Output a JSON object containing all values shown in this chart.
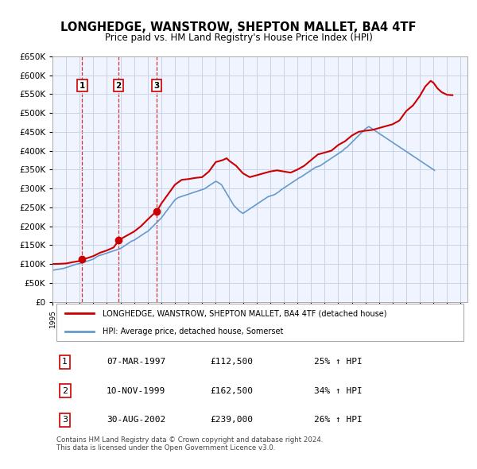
{
  "title": "LONGHEDGE, WANSTROW, SHEPTON MALLET, BA4 4TF",
  "subtitle": "Price paid vs. HM Land Registry's House Price Index (HPI)",
  "title_fontsize": 11,
  "subtitle_fontsize": 9.5,
  "bg_color": "#f0f4ff",
  "plot_bg_color": "#f0f4ff",
  "grid_color": "#c8d4e8",
  "red_color": "#cc0000",
  "blue_color": "#6699cc",
  "xlim": [
    1995.0,
    2025.5
  ],
  "ylim": [
    0,
    650000
  ],
  "yticks": [
    0,
    50000,
    100000,
    150000,
    200000,
    250000,
    300000,
    350000,
    400000,
    450000,
    500000,
    550000,
    600000,
    650000
  ],
  "ytick_labels": [
    "£0",
    "£50K",
    "£100K",
    "£150K",
    "£200K",
    "£250K",
    "£300K",
    "£350K",
    "£400K",
    "£450K",
    "£500K",
    "£550K",
    "£600K",
    "£650K"
  ],
  "xticks": [
    1995,
    1996,
    1997,
    1998,
    1999,
    2000,
    2001,
    2002,
    2003,
    2004,
    2005,
    2006,
    2007,
    2008,
    2009,
    2010,
    2011,
    2012,
    2013,
    2014,
    2015,
    2016,
    2017,
    2018,
    2019,
    2020,
    2021,
    2022,
    2023,
    2024,
    2025
  ],
  "sale_dates": [
    1997.18,
    1999.86,
    2002.66
  ],
  "sale_prices": [
    112500,
    162500,
    239000
  ],
  "sale_labels": [
    "1",
    "2",
    "3"
  ],
  "vline_dates": [
    1997.18,
    1999.86,
    2002.66
  ],
  "legend_red_label": "LONGHEDGE, WANSTROW, SHEPTON MALLET, BA4 4TF (detached house)",
  "legend_blue_label": "HPI: Average price, detached house, Somerset",
  "table_rows": [
    [
      "1",
      "07-MAR-1997",
      "£112,500",
      "25% ↑ HPI"
    ],
    [
      "2",
      "10-NOV-1999",
      "£162,500",
      "34% ↑ HPI"
    ],
    [
      "3",
      "30-AUG-2002",
      "£239,000",
      "26% ↑ HPI"
    ]
  ],
  "footer_text": "Contains HM Land Registry data © Crown copyright and database right 2024.\nThis data is licensed under the Open Government Licence v3.0.",
  "hpi_x": [
    1995.0,
    1995.08,
    1995.17,
    1995.25,
    1995.33,
    1995.42,
    1995.5,
    1995.58,
    1995.67,
    1995.75,
    1995.83,
    1995.92,
    1996.0,
    1996.08,
    1996.17,
    1996.25,
    1996.33,
    1996.42,
    1996.5,
    1996.58,
    1996.67,
    1996.75,
    1996.83,
    1996.92,
    1997.0,
    1997.08,
    1997.17,
    1997.25,
    1997.33,
    1997.42,
    1997.5,
    1997.58,
    1997.67,
    1997.75,
    1997.83,
    1997.92,
    1998.0,
    1998.08,
    1998.17,
    1998.25,
    1998.33,
    1998.42,
    1998.5,
    1998.58,
    1998.67,
    1998.75,
    1998.83,
    1998.92,
    1999.0,
    1999.08,
    1999.17,
    1999.25,
    1999.33,
    1999.42,
    1999.5,
    1999.58,
    1999.67,
    1999.75,
    1999.83,
    1999.92,
    2000.0,
    2000.08,
    2000.17,
    2000.25,
    2000.33,
    2000.42,
    2000.5,
    2000.58,
    2000.67,
    2000.75,
    2000.83,
    2000.92,
    2001.0,
    2001.08,
    2001.17,
    2001.25,
    2001.33,
    2001.42,
    2001.5,
    2001.58,
    2001.67,
    2001.75,
    2001.83,
    2001.92,
    2002.0,
    2002.08,
    2002.17,
    2002.25,
    2002.33,
    2002.42,
    2002.5,
    2002.58,
    2002.67,
    2002.75,
    2002.83,
    2002.92,
    2003.0,
    2003.08,
    2003.17,
    2003.25,
    2003.33,
    2003.42,
    2003.5,
    2003.58,
    2003.67,
    2003.75,
    2003.83,
    2003.92,
    2004.0,
    2004.08,
    2004.17,
    2004.25,
    2004.33,
    2004.42,
    2004.5,
    2004.58,
    2004.67,
    2004.75,
    2004.83,
    2004.92,
    2005.0,
    2005.08,
    2005.17,
    2005.25,
    2005.33,
    2005.42,
    2005.5,
    2005.58,
    2005.67,
    2005.75,
    2005.83,
    2005.92,
    2006.0,
    2006.08,
    2006.17,
    2006.25,
    2006.33,
    2006.42,
    2006.5,
    2006.58,
    2006.67,
    2006.75,
    2006.83,
    2006.92,
    2007.0,
    2007.08,
    2007.17,
    2007.25,
    2007.33,
    2007.42,
    2007.5,
    2007.58,
    2007.67,
    2007.75,
    2007.83,
    2007.92,
    2008.0,
    2008.08,
    2008.17,
    2008.25,
    2008.33,
    2008.42,
    2008.5,
    2008.58,
    2008.67,
    2008.75,
    2008.83,
    2008.92,
    2009.0,
    2009.08,
    2009.17,
    2009.25,
    2009.33,
    2009.42,
    2009.5,
    2009.58,
    2009.67,
    2009.75,
    2009.83,
    2009.92,
    2010.0,
    2010.08,
    2010.17,
    2010.25,
    2010.33,
    2010.42,
    2010.5,
    2010.58,
    2010.67,
    2010.75,
    2010.83,
    2010.92,
    2011.0,
    2011.08,
    2011.17,
    2011.25,
    2011.33,
    2011.42,
    2011.5,
    2011.58,
    2011.67,
    2011.75,
    2011.83,
    2011.92,
    2012.0,
    2012.08,
    2012.17,
    2012.25,
    2012.33,
    2012.42,
    2012.5,
    2012.58,
    2012.67,
    2012.75,
    2012.83,
    2012.92,
    2013.0,
    2013.08,
    2013.17,
    2013.25,
    2013.33,
    2013.42,
    2013.5,
    2013.58,
    2013.67,
    2013.75,
    2013.83,
    2013.92,
    2014.0,
    2014.08,
    2014.17,
    2014.25,
    2014.33,
    2014.42,
    2014.5,
    2014.58,
    2014.67,
    2014.75,
    2014.83,
    2014.92,
    2015.0,
    2015.08,
    2015.17,
    2015.25,
    2015.33,
    2015.42,
    2015.5,
    2015.58,
    2015.67,
    2015.75,
    2015.83,
    2015.92,
    2016.0,
    2016.08,
    2016.17,
    2016.25,
    2016.33,
    2016.42,
    2016.5,
    2016.58,
    2016.67,
    2016.75,
    2016.83,
    2016.92,
    2017.0,
    2017.08,
    2017.17,
    2017.25,
    2017.33,
    2017.42,
    2017.5,
    2017.58,
    2017.67,
    2017.75,
    2017.83,
    2017.92,
    2018.0,
    2018.08,
    2018.17,
    2018.25,
    2018.33,
    2018.42,
    2018.5,
    2018.58,
    2018.67,
    2018.75,
    2018.83,
    2018.92,
    2019.0,
    2019.08,
    2019.17,
    2019.25,
    2019.33,
    2019.42,
    2019.5,
    2019.58,
    2019.67,
    2019.75,
    2019.83,
    2019.92,
    2020.0,
    2020.08,
    2020.17,
    2020.25,
    2020.33,
    2020.42,
    2020.5,
    2020.58,
    2020.67,
    2020.75,
    2020.83,
    2020.92,
    2021.0,
    2021.08,
    2021.17,
    2021.25,
    2021.33,
    2021.42,
    2021.5,
    2021.58,
    2021.67,
    2021.75,
    2021.83,
    2021.92,
    2022.0,
    2022.08,
    2022.17,
    2022.25,
    2022.33,
    2022.42,
    2022.5,
    2022.58,
    2022.67,
    2022.75,
    2022.83,
    2022.92,
    2023.0,
    2023.08,
    2023.17,
    2023.25,
    2023.33,
    2023.42,
    2023.5,
    2023.58,
    2023.67,
    2023.75,
    2023.83,
    2023.92,
    2024.0,
    2024.08,
    2024.17,
    2024.25,
    2024.33,
    2024.42,
    2024.5
  ],
  "hpi_y": [
    83000,
    84000,
    84500,
    85000,
    85500,
    86000,
    86500,
    87000,
    87500,
    88000,
    88500,
    89500,
    90500,
    91500,
    92500,
    93500,
    94500,
    95500,
    96500,
    97500,
    98500,
    99500,
    100000,
    100500,
    101000,
    102000,
    103000,
    104000,
    105000,
    106000,
    107000,
    108000,
    109000,
    110000,
    111000,
    112000,
    113000,
    115000,
    117000,
    119000,
    121000,
    122000,
    123000,
    124000,
    125000,
    126000,
    127000,
    128000,
    129000,
    130000,
    131000,
    132000,
    133000,
    134000,
    135000,
    136000,
    137000,
    138000,
    139000,
    140000,
    141000,
    143000,
    145000,
    147000,
    149000,
    151000,
    153000,
    155000,
    157000,
    159000,
    161000,
    162000,
    163000,
    165000,
    167000,
    169000,
    171000,
    173000,
    175000,
    177000,
    179000,
    181000,
    183000,
    185000,
    186000,
    189000,
    192000,
    195000,
    198000,
    201000,
    204000,
    207000,
    210000,
    213000,
    216000,
    219000,
    222000,
    226000,
    230000,
    234000,
    238000,
    242000,
    246000,
    250000,
    254000,
    258000,
    262000,
    266000,
    270000,
    272000,
    274000,
    276000,
    277000,
    278000,
    279000,
    280000,
    281000,
    282000,
    283000,
    284000,
    285000,
    286000,
    287000,
    288000,
    289000,
    290000,
    291000,
    292000,
    293000,
    294000,
    295000,
    296000,
    297000,
    298000,
    299000,
    301000,
    303000,
    305000,
    307000,
    309000,
    311000,
    313000,
    315000,
    317000,
    319000,
    318000,
    316000,
    314000,
    312000,
    310000,
    305000,
    300000,
    295000,
    290000,
    285000,
    280000,
    275000,
    270000,
    265000,
    260000,
    255000,
    252000,
    249000,
    246000,
    243000,
    240000,
    238000,
    236000,
    234000,
    236000,
    238000,
    240000,
    242000,
    244000,
    246000,
    248000,
    250000,
    252000,
    254000,
    256000,
    258000,
    260000,
    262000,
    264000,
    266000,
    268000,
    270000,
    272000,
    274000,
    276000,
    278000,
    279000,
    280000,
    281000,
    282000,
    283000,
    284000,
    286000,
    288000,
    290000,
    292000,
    295000,
    297000,
    299000,
    301000,
    303000,
    305000,
    307000,
    309000,
    311000,
    313000,
    315000,
    317000,
    319000,
    321000,
    323000,
    325000,
    327000,
    329000,
    330000,
    332000,
    334000,
    336000,
    338000,
    340000,
    342000,
    344000,
    346000,
    348000,
    350000,
    352000,
    354000,
    356000,
    357000,
    358000,
    359000,
    360000,
    362000,
    364000,
    366000,
    368000,
    370000,
    372000,
    374000,
    376000,
    378000,
    380000,
    382000,
    384000,
    386000,
    388000,
    390000,
    392000,
    394000,
    396000,
    398000,
    400000,
    403000,
    406000,
    408000,
    410000,
    413000,
    416000,
    419000,
    422000,
    425000,
    428000,
    431000,
    434000,
    437000,
    440000,
    443000,
    446000,
    449000,
    452000,
    455000,
    458000,
    460000,
    462000,
    464000,
    462000,
    460000,
    458000,
    456000,
    454000,
    452000,
    450000,
    448000,
    446000,
    444000,
    442000,
    440000,
    438000,
    436000,
    434000,
    432000,
    430000,
    428000,
    426000,
    424000,
    422000,
    420000,
    418000,
    416000,
    414000,
    412000,
    410000,
    408000,
    406000,
    404000,
    402000,
    400000,
    398000,
    396000,
    394000,
    392000,
    390000,
    388000,
    386000,
    384000,
    382000,
    380000,
    378000,
    376000,
    374000,
    372000,
    370000,
    368000,
    366000,
    364000,
    362000,
    360000,
    358000,
    356000,
    354000,
    352000,
    350000,
    348000
  ],
  "red_x": [
    1995.0,
    1995.5,
    1996.0,
    1996.5,
    1997.0,
    1997.18,
    1997.5,
    1998.0,
    1998.5,
    1999.0,
    1999.5,
    1999.86,
    2000.0,
    2000.5,
    2001.0,
    2001.5,
    2002.0,
    2002.5,
    2002.66,
    2003.0,
    2003.5,
    2004.0,
    2004.5,
    2005.0,
    2005.5,
    2006.0,
    2006.5,
    2007.0,
    2007.5,
    2007.8,
    2008.0,
    2008.5,
    2009.0,
    2009.5,
    2010.0,
    2010.5,
    2011.0,
    2011.5,
    2012.0,
    2012.5,
    2013.0,
    2013.5,
    2014.0,
    2014.5,
    2015.0,
    2015.5,
    2016.0,
    2016.5,
    2017.0,
    2017.5,
    2018.0,
    2018.5,
    2019.0,
    2019.5,
    2020.0,
    2020.5,
    2021.0,
    2021.5,
    2022.0,
    2022.4,
    2022.8,
    2023.0,
    2023.3,
    2023.6,
    2024.0,
    2024.4
  ],
  "red_y": [
    100000,
    100500,
    101500,
    105000,
    108000,
    112500,
    115000,
    121000,
    130000,
    136000,
    144000,
    162500,
    166000,
    176000,
    186000,
    200000,
    218000,
    235000,
    239000,
    260000,
    285000,
    310000,
    323000,
    325000,
    328000,
    330000,
    345000,
    370000,
    375000,
    380000,
    373000,
    360000,
    340000,
    330000,
    335000,
    340000,
    345000,
    348000,
    345000,
    342000,
    350000,
    360000,
    375000,
    390000,
    395000,
    400000,
    415000,
    425000,
    440000,
    450000,
    453000,
    455000,
    460000,
    465000,
    470000,
    480000,
    505000,
    520000,
    545000,
    570000,
    585000,
    580000,
    565000,
    555000,
    548000,
    547000
  ]
}
